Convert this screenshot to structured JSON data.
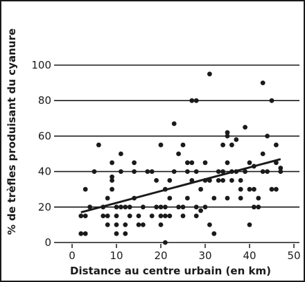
{
  "chart_data": {
    "type": "scatter",
    "title": "",
    "xlabel": "Distance au centre urbain (en km)",
    "ylabel": "% de trèfles produisant du cyanure",
    "xlim": [
      -1,
      50
    ],
    "ylim": [
      0,
      100
    ],
    "xticks": [
      "0",
      "10",
      "20",
      "30",
      "40",
      "50"
    ],
    "yticks": [
      "0",
      "20",
      "40",
      "60",
      "80",
      "100"
    ],
    "grid": "horizontal",
    "point_color": "#1a1a1a",
    "points": [
      [
        2,
        5
      ],
      [
        3,
        5
      ],
      [
        2,
        15
      ],
      [
        3,
        15
      ],
      [
        3,
        30
      ],
      [
        4,
        20
      ],
      [
        5,
        40
      ],
      [
        6,
        55
      ],
      [
        7,
        20
      ],
      [
        7,
        15
      ],
      [
        8,
        10
      ],
      [
        8,
        15
      ],
      [
        8,
        25
      ],
      [
        9,
        30
      ],
      [
        9,
        45
      ],
      [
        9,
        37
      ],
      [
        9,
        35
      ],
      [
        10,
        20
      ],
      [
        10,
        15
      ],
      [
        10,
        10
      ],
      [
        10,
        5
      ],
      [
        11,
        20
      ],
      [
        11,
        40
      ],
      [
        11,
        50
      ],
      [
        12,
        20
      ],
      [
        12,
        10
      ],
      [
        12,
        5
      ],
      [
        13,
        20
      ],
      [
        13,
        15
      ],
      [
        14,
        25
      ],
      [
        14,
        45
      ],
      [
        14,
        40
      ],
      [
        15,
        10
      ],
      [
        15,
        15
      ],
      [
        16,
        10
      ],
      [
        16,
        20
      ],
      [
        17,
        40
      ],
      [
        18,
        40
      ],
      [
        18,
        15
      ],
      [
        19,
        35
      ],
      [
        19,
        20
      ],
      [
        20,
        55
      ],
      [
        20,
        20
      ],
      [
        20,
        15
      ],
      [
        20,
        10
      ],
      [
        21,
        30
      ],
      [
        21,
        20
      ],
      [
        21,
        15
      ],
      [
        21,
        0
      ],
      [
        22,
        35
      ],
      [
        22,
        25
      ],
      [
        22,
        15
      ],
      [
        23,
        67
      ],
      [
        23,
        40
      ],
      [
        24,
        50
      ],
      [
        24,
        20
      ],
      [
        25,
        20
      ],
      [
        25,
        15
      ],
      [
        25,
        55
      ],
      [
        26,
        45
      ],
      [
        26,
        40
      ],
      [
        26,
        25
      ],
      [
        27,
        80
      ],
      [
        27,
        45
      ],
      [
        27,
        35
      ],
      [
        28,
        80
      ],
      [
        28,
        40
      ],
      [
        28,
        15
      ],
      [
        28,
        20
      ],
      [
        29,
        30
      ],
      [
        29,
        18
      ],
      [
        30,
        45
      ],
      [
        30,
        35
      ],
      [
        30,
        20
      ],
      [
        31,
        95
      ],
      [
        31,
        10
      ],
      [
        31,
        35
      ],
      [
        32,
        5
      ],
      [
        32,
        25
      ],
      [
        33,
        40
      ],
      [
        33,
        35
      ],
      [
        34,
        55
      ],
      [
        34,
        40
      ],
      [
        34,
        35
      ],
      [
        35,
        60
      ],
      [
        35,
        62
      ],
      [
        35,
        45
      ],
      [
        35,
        25
      ],
      [
        36,
        55
      ],
      [
        36,
        40
      ],
      [
        36,
        35
      ],
      [
        37,
        58
      ],
      [
        37,
        40
      ],
      [
        38,
        35
      ],
      [
        38,
        30
      ],
      [
        38,
        25
      ],
      [
        39,
        65
      ],
      [
        39,
        40
      ],
      [
        40,
        45
      ],
      [
        40,
        30
      ],
      [
        40,
        10
      ],
      [
        41,
        43
      ],
      [
        41,
        30
      ],
      [
        41,
        20
      ],
      [
        42,
        25
      ],
      [
        42,
        20
      ],
      [
        43,
        90
      ],
      [
        43,
        50
      ],
      [
        43,
        40
      ],
      [
        44,
        60
      ],
      [
        44,
        40
      ],
      [
        45,
        80
      ],
      [
        45,
        30
      ],
      [
        46,
        55
      ],
      [
        46,
        30
      ],
      [
        46,
        45
      ],
      [
        47,
        42
      ],
      [
        47,
        40
      ]
    ],
    "trendline": {
      "x": [
        2,
        47
      ],
      "y": [
        17,
        47
      ]
    }
  }
}
